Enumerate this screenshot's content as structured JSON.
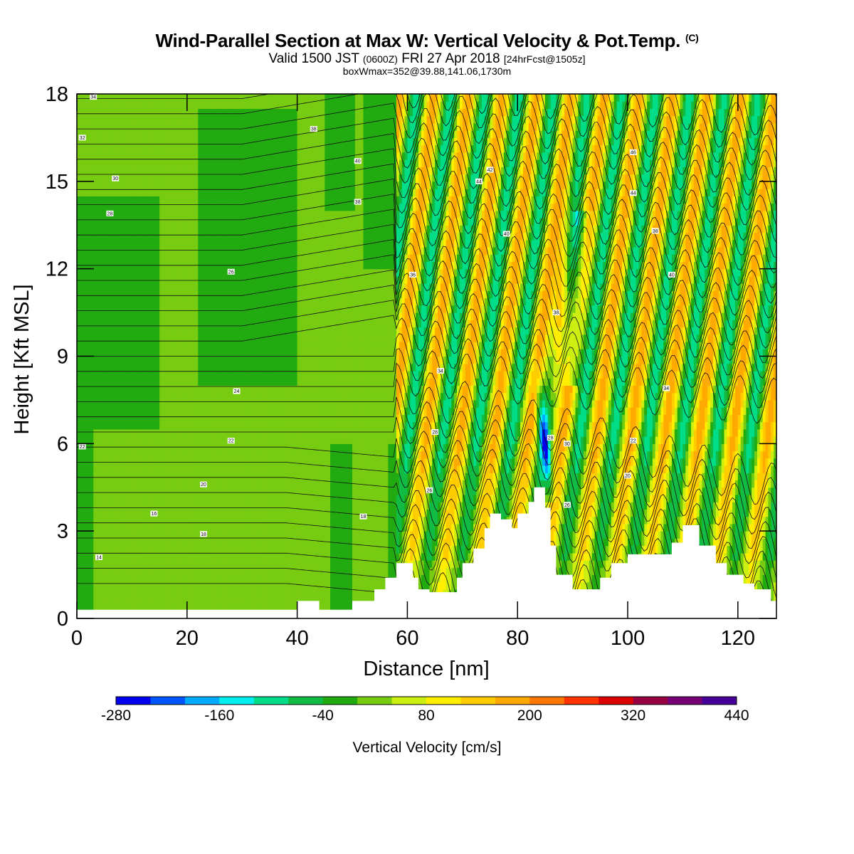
{
  "header": {
    "title_main": "Wind-Parallel Section at Max W: Vertical Velocity & Pot.Temp.",
    "title_copyright": "(C)",
    "subtitle_a": "Valid 1500 JST",
    "subtitle_b": "(0600Z)",
    "subtitle_c": "FRI 27 Apr 2018",
    "subtitle_d": "[24hrFcst@1505z]",
    "box_info": "boxWmax=352@39.88,141.06,1730m"
  },
  "chart_data": {
    "type": "heatmap",
    "xlabel": "Distance [nm]",
    "ylabel": "Height [Kft MSL]",
    "xlim": [
      0,
      127
    ],
    "ylim": [
      0,
      18
    ],
    "x_ticks": [
      0,
      20,
      40,
      60,
      80,
      100,
      120
    ],
    "y_ticks": [
      0,
      3,
      6,
      9,
      12,
      15,
      18
    ],
    "colorbar": {
      "label": "Vertical Velocity [cm/s]",
      "tick_labels": [
        "-280",
        "-160",
        "-40",
        "80",
        "200",
        "320",
        "440"
      ],
      "bins": [
        -280,
        -240,
        -200,
        -160,
        -120,
        -80,
        -40,
        0,
        40,
        80,
        120,
        160,
        200,
        240,
        280,
        320,
        360,
        400,
        440
      ],
      "colors": [
        "#0000ee",
        "#0055ff",
        "#00aaff",
        "#00eeee",
        "#00dd88",
        "#11bb44",
        "#22aa11",
        "#77cc11",
        "#ccee11",
        "#ffee00",
        "#ffcc00",
        "#ffaa00",
        "#ff7700",
        "#ff3300",
        "#dd0000",
        "#990044",
        "#770077",
        "#440099"
      ]
    },
    "terrain": [
      [
        0,
        0.3
      ],
      [
        40,
        0.3
      ],
      [
        40,
        0.6
      ],
      [
        44,
        0.6
      ],
      [
        44,
        0.3
      ],
      [
        50,
        0.3
      ],
      [
        50,
        0.6
      ],
      [
        54,
        0.6
      ],
      [
        54,
        1.0
      ],
      [
        56,
        1.0
      ],
      [
        56,
        1.4
      ],
      [
        58,
        1.4
      ],
      [
        58,
        1.9
      ],
      [
        61,
        1.9
      ],
      [
        61,
        1.4
      ],
      [
        62,
        1.4
      ],
      [
        62,
        1.0
      ],
      [
        64,
        1.0
      ],
      [
        64,
        0.9
      ],
      [
        69,
        0.9
      ],
      [
        69,
        1.4
      ],
      [
        70,
        1.4
      ],
      [
        70,
        1.9
      ],
      [
        72,
        1.9
      ],
      [
        72,
        2.4
      ],
      [
        74,
        2.4
      ],
      [
        74,
        3.1
      ],
      [
        75,
        3.1
      ],
      [
        75,
        3.6
      ],
      [
        77,
        3.6
      ],
      [
        77,
        3.4
      ],
      [
        79,
        3.4
      ],
      [
        79,
        3.1
      ],
      [
        80,
        3.1
      ],
      [
        80,
        3.6
      ],
      [
        82,
        3.6
      ],
      [
        82,
        4.0
      ],
      [
        83,
        4.0
      ],
      [
        83,
        4.5
      ],
      [
        85,
        4.5
      ],
      [
        85,
        3.8
      ],
      [
        86,
        3.8
      ],
      [
        86,
        2.5
      ],
      [
        87,
        2.5
      ],
      [
        87,
        1.5
      ],
      [
        90,
        1.5
      ],
      [
        90,
        1.0
      ],
      [
        95,
        1.0
      ],
      [
        95,
        1.4
      ],
      [
        97,
        1.4
      ],
      [
        97,
        1.9
      ],
      [
        100,
        1.9
      ],
      [
        100,
        2.2
      ],
      [
        108,
        2.2
      ],
      [
        108,
        2.6
      ],
      [
        110,
        2.6
      ],
      [
        110,
        3.2
      ],
      [
        113,
        3.2
      ],
      [
        113,
        2.5
      ],
      [
        116,
        2.5
      ],
      [
        116,
        1.9
      ],
      [
        118,
        1.9
      ],
      [
        118,
        1.5
      ],
      [
        121,
        1.5
      ],
      [
        121,
        1.2
      ],
      [
        123,
        1.2
      ],
      [
        123,
        1.0
      ],
      [
        126,
        1.0
      ],
      [
        126,
        0.6
      ],
      [
        127,
        0.6
      ],
      [
        127,
        0
      ]
    ],
    "theta_contour_labels": [
      {
        "label": "14",
        "x": 4,
        "y": 2.1
      },
      {
        "label": "16",
        "x": 14,
        "y": 3.6
      },
      {
        "label": "18",
        "x": 23,
        "y": 2.9
      },
      {
        "label": "18",
        "x": 52,
        "y": 3.5
      },
      {
        "label": "20",
        "x": 23,
        "y": 4.6
      },
      {
        "label": "22",
        "x": 1,
        "y": 5.9
      },
      {
        "label": "22",
        "x": 28,
        "y": 6.1
      },
      {
        "label": "24",
        "x": 29,
        "y": 7.8
      },
      {
        "label": "26",
        "x": 28,
        "y": 11.9
      },
      {
        "label": "26",
        "x": 64,
        "y": 4.4
      },
      {
        "label": "28",
        "x": 6,
        "y": 13.9
      },
      {
        "label": "28",
        "x": 65,
        "y": 6.4
      },
      {
        "label": "30",
        "x": 7,
        "y": 15.1
      },
      {
        "label": "32",
        "x": 1,
        "y": 16.5
      },
      {
        "label": "34",
        "x": 3,
        "y": 17.9
      },
      {
        "label": "34",
        "x": 66,
        "y": 8.5
      },
      {
        "label": "36",
        "x": 61,
        "y": 11.8
      },
      {
        "label": "38",
        "x": 43,
        "y": 16.8
      },
      {
        "label": "40",
        "x": 51,
        "y": 15.7
      },
      {
        "label": "38",
        "x": 51,
        "y": 14.3
      },
      {
        "label": "42",
        "x": 75,
        "y": 15.4
      },
      {
        "label": "44",
        "x": 73,
        "y": 15.0
      },
      {
        "label": "40",
        "x": 78,
        "y": 13.2
      },
      {
        "label": "38",
        "x": 87,
        "y": 10.5
      },
      {
        "label": "28",
        "x": 86,
        "y": 6.2
      },
      {
        "label": "30",
        "x": 89,
        "y": 6.0
      },
      {
        "label": "26",
        "x": 89,
        "y": 3.9
      },
      {
        "label": "46",
        "x": 101,
        "y": 16.0
      },
      {
        "label": "44",
        "x": 101,
        "y": 14.6
      },
      {
        "label": "38",
        "x": 105,
        "y": 13.3
      },
      {
        "label": "40",
        "x": 108,
        "y": 11.8
      },
      {
        "label": "34",
        "x": 107,
        "y": 7.9
      },
      {
        "label": "22",
        "x": 101,
        "y": 6.1
      },
      {
        "label": "20",
        "x": 100,
        "y": 4.9
      }
    ]
  }
}
